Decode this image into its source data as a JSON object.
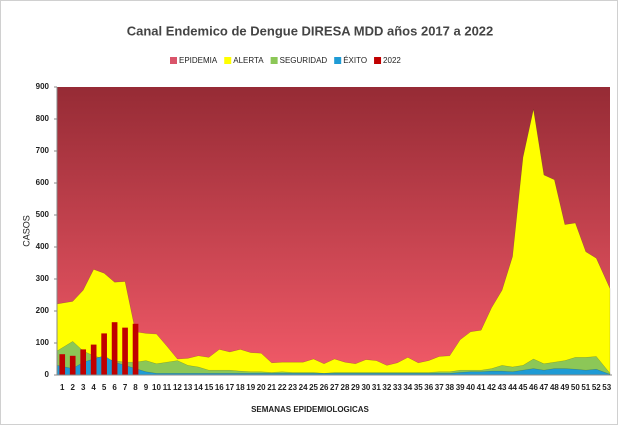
{
  "chart_data": {
    "type": "area",
    "title": "Canal Endemico de Dengue DIRESA MDD años 2017 a 2022",
    "x_label": "SEMANAS EPIDEMIOLOGICAS",
    "y_label": "CASOS",
    "categories": [
      "1",
      "2",
      "3",
      "4",
      "5",
      "6",
      "7",
      "8",
      "9",
      "10",
      "11",
      "12",
      "13",
      "14",
      "15",
      "16",
      "17",
      "18",
      "19",
      "20",
      "21",
      "22",
      "23",
      "24",
      "25",
      "26",
      "27",
      "28",
      "29",
      "30",
      "31",
      "32",
      "33",
      "34",
      "35",
      "36",
      "37",
      "38",
      "39",
      "40",
      "41",
      "42",
      "43",
      "44",
      "45",
      "46",
      "47",
      "48",
      "49",
      "50",
      "51",
      "52",
      "53"
    ],
    "ylim": [
      0,
      900
    ],
    "yticks": [
      0,
      100,
      200,
      300,
      400,
      500,
      600,
      700,
      800,
      900
    ],
    "series": [
      {
        "name": "EPIDEMIA",
        "color": "#e8505e",
        "values": [
          900,
          900,
          900,
          900,
          900,
          900,
          900,
          900,
          900,
          900,
          900,
          900,
          900,
          900,
          900,
          900,
          900,
          900,
          900,
          900,
          900,
          900,
          900,
          900,
          900,
          900,
          900,
          900,
          900,
          900,
          900,
          900,
          900,
          900,
          900,
          900,
          900,
          900,
          900,
          900,
          900,
          900,
          900,
          900,
          900,
          900,
          900,
          900,
          900,
          900,
          900,
          900,
          900
        ]
      },
      {
        "name": "ALERTA",
        "color": "#ffff00",
        "values": [
          222,
          230,
          265,
          330,
          318,
          290,
          292,
          135,
          130,
          128,
          90,
          50,
          52,
          60,
          55,
          80,
          72,
          80,
          70,
          68,
          38,
          40,
          40,
          40,
          50,
          35,
          50,
          40,
          35,
          48,
          45,
          30,
          38,
          55,
          38,
          45,
          58,
          60,
          110,
          135,
          140,
          210,
          265,
          370,
          680,
          830,
          625,
          610,
          470,
          475,
          385,
          365,
          270
        ]
      },
      {
        "name": "SEGURIDAD",
        "color": "#8cc757",
        "values": [
          75,
          105,
          75,
          60,
          50,
          45,
          40,
          40,
          45,
          35,
          40,
          45,
          30,
          25,
          15,
          15,
          15,
          12,
          10,
          10,
          8,
          10,
          8,
          8,
          8,
          5,
          8,
          8,
          8,
          8,
          8,
          8,
          8,
          8,
          8,
          8,
          10,
          10,
          15,
          15,
          15,
          20,
          30,
          25,
          30,
          50,
          35,
          40,
          45,
          55,
          55,
          58,
          5
        ]
      },
      {
        "name": "ÉXITO",
        "color": "#1f9bd5",
        "values": [
          30,
          20,
          40,
          50,
          60,
          40,
          30,
          20,
          10,
          5,
          5,
          5,
          5,
          5,
          5,
          5,
          5,
          5,
          5,
          5,
          5,
          5,
          5,
          5,
          5,
          5,
          5,
          5,
          5,
          5,
          5,
          5,
          5,
          5,
          5,
          5,
          5,
          5,
          8,
          10,
          10,
          12,
          12,
          10,
          15,
          20,
          15,
          20,
          20,
          18,
          15,
          18,
          2
        ]
      },
      {
        "name": "2022",
        "color": "#c00000",
        "type": "bar",
        "values": [
          65,
          60,
          80,
          95,
          130,
          165,
          148,
          160,
          null,
          null,
          null,
          null,
          null,
          null,
          null,
          null,
          null,
          null,
          null,
          null,
          null,
          null,
          null,
          null,
          null,
          null,
          null,
          null,
          null,
          null,
          null,
          null,
          null,
          null,
          null,
          null,
          null,
          null,
          null,
          null,
          null,
          null,
          null,
          null,
          null,
          null,
          null,
          null,
          null,
          null,
          null,
          null,
          null
        ]
      }
    ]
  }
}
